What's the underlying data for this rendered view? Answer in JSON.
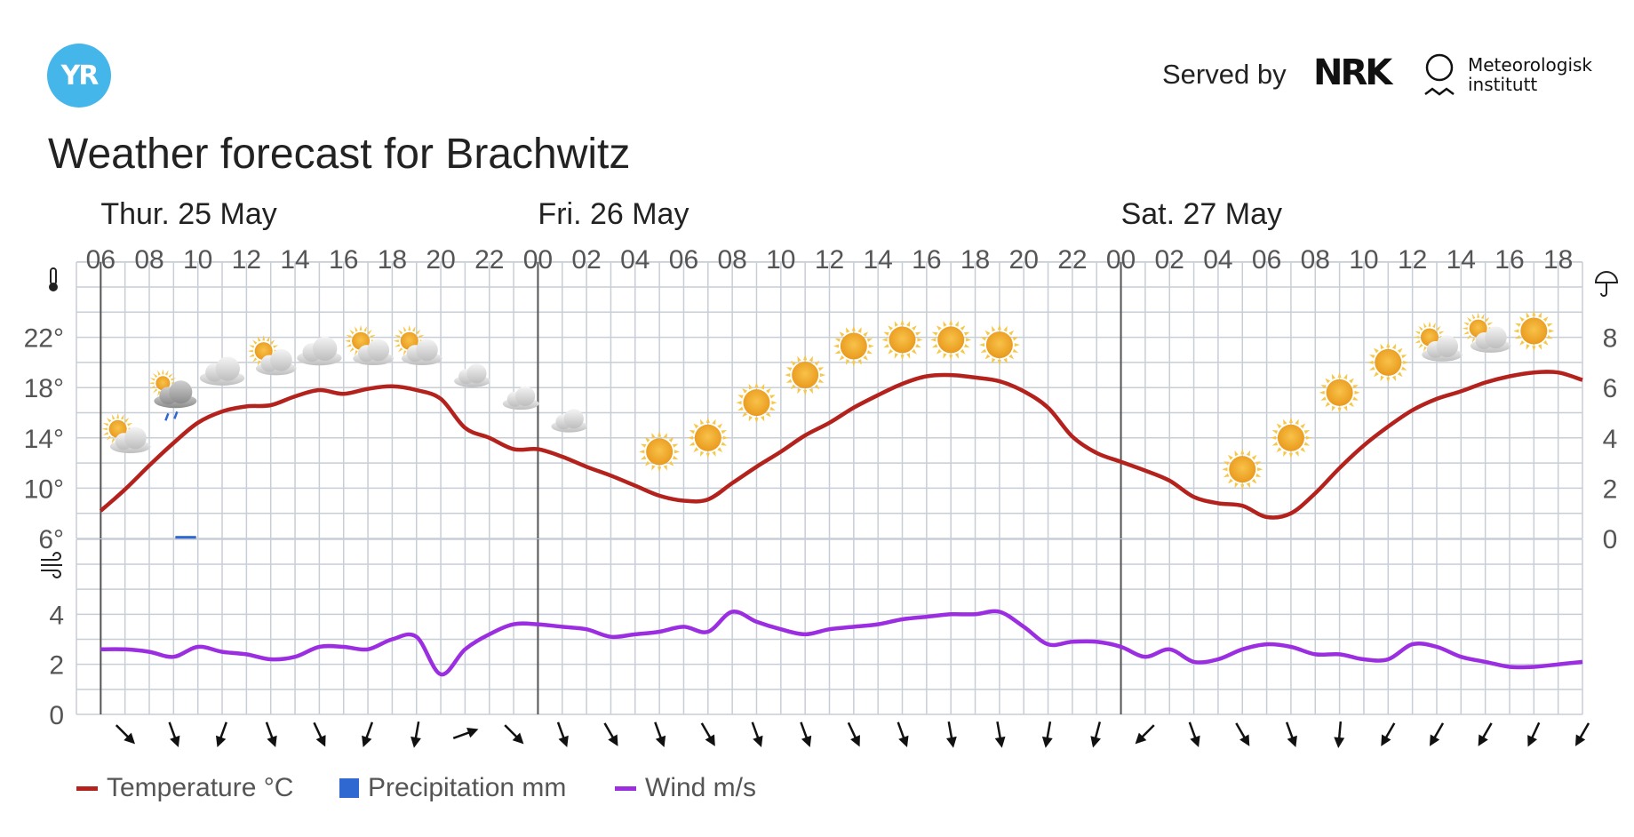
{
  "header": {
    "logo_text": "YR",
    "served_by": "Served by",
    "nrk_text": "NRK",
    "met_line1": "Meteorologisk",
    "met_line2": "institutt",
    "title": "Weather forecast for Brachwitz"
  },
  "legend": {
    "temperature": "Temperature °C",
    "precipitation": "Precipitation mm",
    "wind": "Wind m/s"
  },
  "colors": {
    "temperature": "#b3221c",
    "precipitation": "#2f68d1",
    "wind": "#9b2ee0",
    "grid": "#c8ced6",
    "day_divider": "#555555"
  },
  "chart_data": {
    "type": "line",
    "days": [
      {
        "label": "Thur. 25 May",
        "start_hour": 6
      },
      {
        "label": "Fri. 26 May",
        "start_hour": 24
      },
      {
        "label": "Sat. 27 May",
        "start_hour": 48
      }
    ],
    "x_hours": [
      6,
      7,
      8,
      9,
      10,
      11,
      12,
      13,
      14,
      15,
      16,
      17,
      18,
      19,
      20,
      21,
      22,
      23,
      24,
      25,
      26,
      27,
      28,
      29,
      30,
      31,
      32,
      33,
      34,
      35,
      36,
      37,
      38,
      39,
      40,
      41,
      42,
      43,
      44,
      45,
      46,
      47,
      48,
      49,
      50,
      51,
      52,
      53,
      54,
      55,
      56,
      57,
      58,
      59,
      60,
      61,
      62,
      63,
      64,
      65,
      66,
      67
    ],
    "tick_labels": [
      "06",
      "08",
      "10",
      "12",
      "14",
      "16",
      "18",
      "20",
      "22",
      "00",
      "02",
      "04",
      "06",
      "08",
      "10",
      "12",
      "14",
      "16",
      "18",
      "20",
      "22",
      "00",
      "02",
      "04",
      "06",
      "08",
      "10",
      "12",
      "14",
      "16",
      "18"
    ],
    "temperature_axis": {
      "ticks": [
        "6°",
        "10°",
        "14°",
        "18°",
        "22°"
      ],
      "ylim": [
        6,
        26
      ]
    },
    "precipitation_axis": {
      "ticks": [
        "0",
        "2",
        "4",
        "6",
        "8"
      ],
      "ylim": [
        0,
        10
      ]
    },
    "wind_axis": {
      "ticks": [
        "0",
        "2",
        "4"
      ],
      "ylim": [
        0,
        6
      ]
    },
    "series": [
      {
        "name": "Temperature °C",
        "unit": "°C",
        "values": [
          8.2,
          9.9,
          11.8,
          13.6,
          15.2,
          16.1,
          16.5,
          16.6,
          17.3,
          17.8,
          17.5,
          17.9,
          18.1,
          17.8,
          17.1,
          14.8,
          14.0,
          13.1,
          13.1,
          12.5,
          11.7,
          11.0,
          10.2,
          9.4,
          9.0,
          9.1,
          10.4,
          11.7,
          12.9,
          14.2,
          15.2,
          16.4,
          17.4,
          18.3,
          18.9,
          19.0,
          18.8,
          18.5,
          17.7,
          16.4,
          14.1,
          12.8,
          12.1,
          11.4,
          10.6,
          9.3,
          8.8,
          8.6,
          7.7,
          8.0,
          9.6,
          11.6,
          13.4,
          14.9,
          16.2,
          17.1,
          17.7,
          18.4,
          18.9,
          19.2,
          19.2,
          18.6
        ]
      },
      {
        "name": "Precipitation mm",
        "unit": "mm",
        "values": [
          0,
          0,
          0,
          0.1,
          0,
          0,
          0,
          0,
          0,
          0,
          0,
          0,
          0,
          0,
          0,
          0,
          0,
          0,
          0,
          0,
          0,
          0,
          0,
          0,
          0,
          0,
          0,
          0,
          0,
          0,
          0,
          0,
          0,
          0,
          0,
          0,
          0,
          0,
          0,
          0,
          0,
          0,
          0,
          0,
          0,
          0,
          0,
          0,
          0,
          0,
          0,
          0,
          0,
          0,
          0,
          0,
          0,
          0,
          0,
          0,
          0,
          0
        ]
      },
      {
        "name": "Wind m/s",
        "unit": "m/s",
        "values": [
          2.6,
          2.6,
          2.5,
          2.3,
          2.7,
          2.5,
          2.4,
          2.2,
          2.3,
          2.7,
          2.7,
          2.6,
          3.0,
          3.1,
          1.6,
          2.6,
          3.2,
          3.6,
          3.6,
          3.5,
          3.4,
          3.1,
          3.2,
          3.3,
          3.5,
          3.3,
          4.1,
          3.7,
          3.4,
          3.2,
          3.4,
          3.5,
          3.6,
          3.8,
          3.9,
          4.0,
          4.0,
          4.1,
          3.5,
          2.8,
          2.9,
          2.9,
          2.7,
          2.3,
          2.6,
          2.1,
          2.2,
          2.6,
          2.8,
          2.7,
          2.4,
          2.4,
          2.2,
          2.2,
          2.8,
          2.7,
          2.3,
          2.1,
          1.9,
          1.9,
          2.0,
          2.1
        ]
      }
    ],
    "symbols": [
      {
        "hour": 7,
        "type": "partly-cloudy-day-icon",
        "temp": 14.0
      },
      {
        "hour": 9,
        "type": "rain-showers-day-icon",
        "temp": 17.5
      },
      {
        "hour": 11,
        "type": "cloudy-icon",
        "temp": 19.2
      },
      {
        "hour": 13,
        "type": "partly-cloudy-day-icon",
        "temp": 20.2
      },
      {
        "hour": 15,
        "type": "cloudy-icon",
        "temp": 20.8
      },
      {
        "hour": 17,
        "type": "partly-cloudy-day-icon",
        "temp": 21.0
      },
      {
        "hour": 19,
        "type": "partly-cloudy-day-icon",
        "temp": 21.0
      },
      {
        "hour": 21,
        "type": "partly-cloudy-night-icon",
        "temp": 19.3
      },
      {
        "hour": 23,
        "type": "partly-cloudy-night-icon",
        "temp": 17.5
      },
      {
        "hour": 25,
        "type": "partly-cloudy-night-icon",
        "temp": 15.7
      },
      {
        "hour": 27,
        "type": "clear-night-icon",
        "temp": 14.0
      },
      {
        "hour": 29,
        "type": "clear-sky-day-icon",
        "temp": 12.9
      },
      {
        "hour": 31,
        "type": "clear-sky-day-icon",
        "temp": 14.0
      },
      {
        "hour": 33,
        "type": "clear-sky-day-icon",
        "temp": 16.8
      },
      {
        "hour": 35,
        "type": "clear-sky-day-icon",
        "temp": 19.0
      },
      {
        "hour": 37,
        "type": "clear-sky-day-icon",
        "temp": 21.3
      },
      {
        "hour": 39,
        "type": "clear-sky-day-icon",
        "temp": 21.8
      },
      {
        "hour": 41,
        "type": "clear-sky-day-icon",
        "temp": 21.8
      },
      {
        "hour": 43,
        "type": "clear-sky-day-icon",
        "temp": 21.4
      },
      {
        "hour": 45,
        "type": "clear-night-icon",
        "temp": 18.8
      },
      {
        "hour": 47,
        "type": "clear-night-icon",
        "temp": 16.1
      },
      {
        "hour": 49,
        "type": "clear-night-icon",
        "temp": 14.0
      },
      {
        "hour": 51,
        "type": "clear-night-icon",
        "temp": 12.4
      },
      {
        "hour": 53,
        "type": "clear-sky-day-icon",
        "temp": 11.5
      },
      {
        "hour": 55,
        "type": "clear-sky-day-icon",
        "temp": 14.0
      },
      {
        "hour": 57,
        "type": "clear-sky-day-icon",
        "temp": 17.6
      },
      {
        "hour": 59,
        "type": "clear-sky-day-icon",
        "temp": 20.0
      },
      {
        "hour": 61,
        "type": "partly-cloudy-day-icon",
        "temp": 21.3
      },
      {
        "hour": 63,
        "type": "partly-cloudy-day-icon",
        "temp": 22.0
      },
      {
        "hour": 65,
        "type": "clear-sky-day-icon",
        "temp": 22.5
      }
    ],
    "wind_directions": [
      {
        "hour": 7,
        "deg": 315
      },
      {
        "hour": 9,
        "deg": 340
      },
      {
        "hour": 11,
        "deg": 20
      },
      {
        "hour": 13,
        "deg": 340
      },
      {
        "hour": 15,
        "deg": 335
      },
      {
        "hour": 17,
        "deg": 20
      },
      {
        "hour": 19,
        "deg": 10
      },
      {
        "hour": 21,
        "deg": 250
      },
      {
        "hour": 23,
        "deg": 315
      },
      {
        "hour": 25,
        "deg": 340
      },
      {
        "hour": 27,
        "deg": 330
      },
      {
        "hour": 29,
        "deg": 340
      },
      {
        "hour": 31,
        "deg": 330
      },
      {
        "hour": 33,
        "deg": 340
      },
      {
        "hour": 35,
        "deg": 340
      },
      {
        "hour": 37,
        "deg": 335
      },
      {
        "hour": 39,
        "deg": 340
      },
      {
        "hour": 41,
        "deg": 350
      },
      {
        "hour": 43,
        "deg": 350
      },
      {
        "hour": 45,
        "deg": 10
      },
      {
        "hour": 47,
        "deg": 15
      },
      {
        "hour": 49,
        "deg": 45
      },
      {
        "hour": 51,
        "deg": 340
      },
      {
        "hour": 53,
        "deg": 330
      },
      {
        "hour": 55,
        "deg": 340
      },
      {
        "hour": 57,
        "deg": 5
      },
      {
        "hour": 59,
        "deg": 30
      },
      {
        "hour": 61,
        "deg": 30
      },
      {
        "hour": 63,
        "deg": 30
      },
      {
        "hour": 65,
        "deg": 25
      },
      {
        "hour": 67,
        "deg": 30
      }
    ]
  }
}
